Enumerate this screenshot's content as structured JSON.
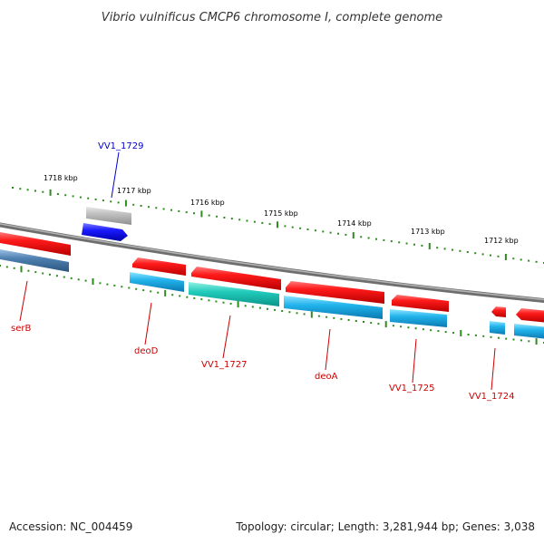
{
  "title": "Vibrio vulnificus CMCP6 chromosome I, complete genome",
  "footer": {
    "accession": "Accession: NC_004459",
    "topology": "Topology: circular; Length: 3,281,944 bp; Genes: 3,038"
  },
  "colors": {
    "backbone": "#808080",
    "tick": "#2e8b1e",
    "gene_forward": "#e81010",
    "gene_reverse_cds": "#20b0e8",
    "gene_teal": "#20c8b8",
    "gene_steel": "#4a7aa8",
    "gene_blue": "#1010e8",
    "gene_gray": "#b8b8b8",
    "label_red": "#cc0000",
    "label_blue": "#0000cc"
  },
  "scale": {
    "tick_labels": [
      "1718 kbp",
      "1717 kbp",
      "1716 kbp",
      "1715 kbp",
      "1714 kbp",
      "1713 kbp",
      "1712 kbp"
    ]
  },
  "genes": {
    "serB": "serB",
    "deoD": "deoD",
    "VV1_1727": "VV1_1727",
    "deoA": "deoA",
    "VV1_1725": "VV1_1725",
    "VV1_1724": "VV1_1724",
    "VV1_1729": "VV1_1729"
  }
}
